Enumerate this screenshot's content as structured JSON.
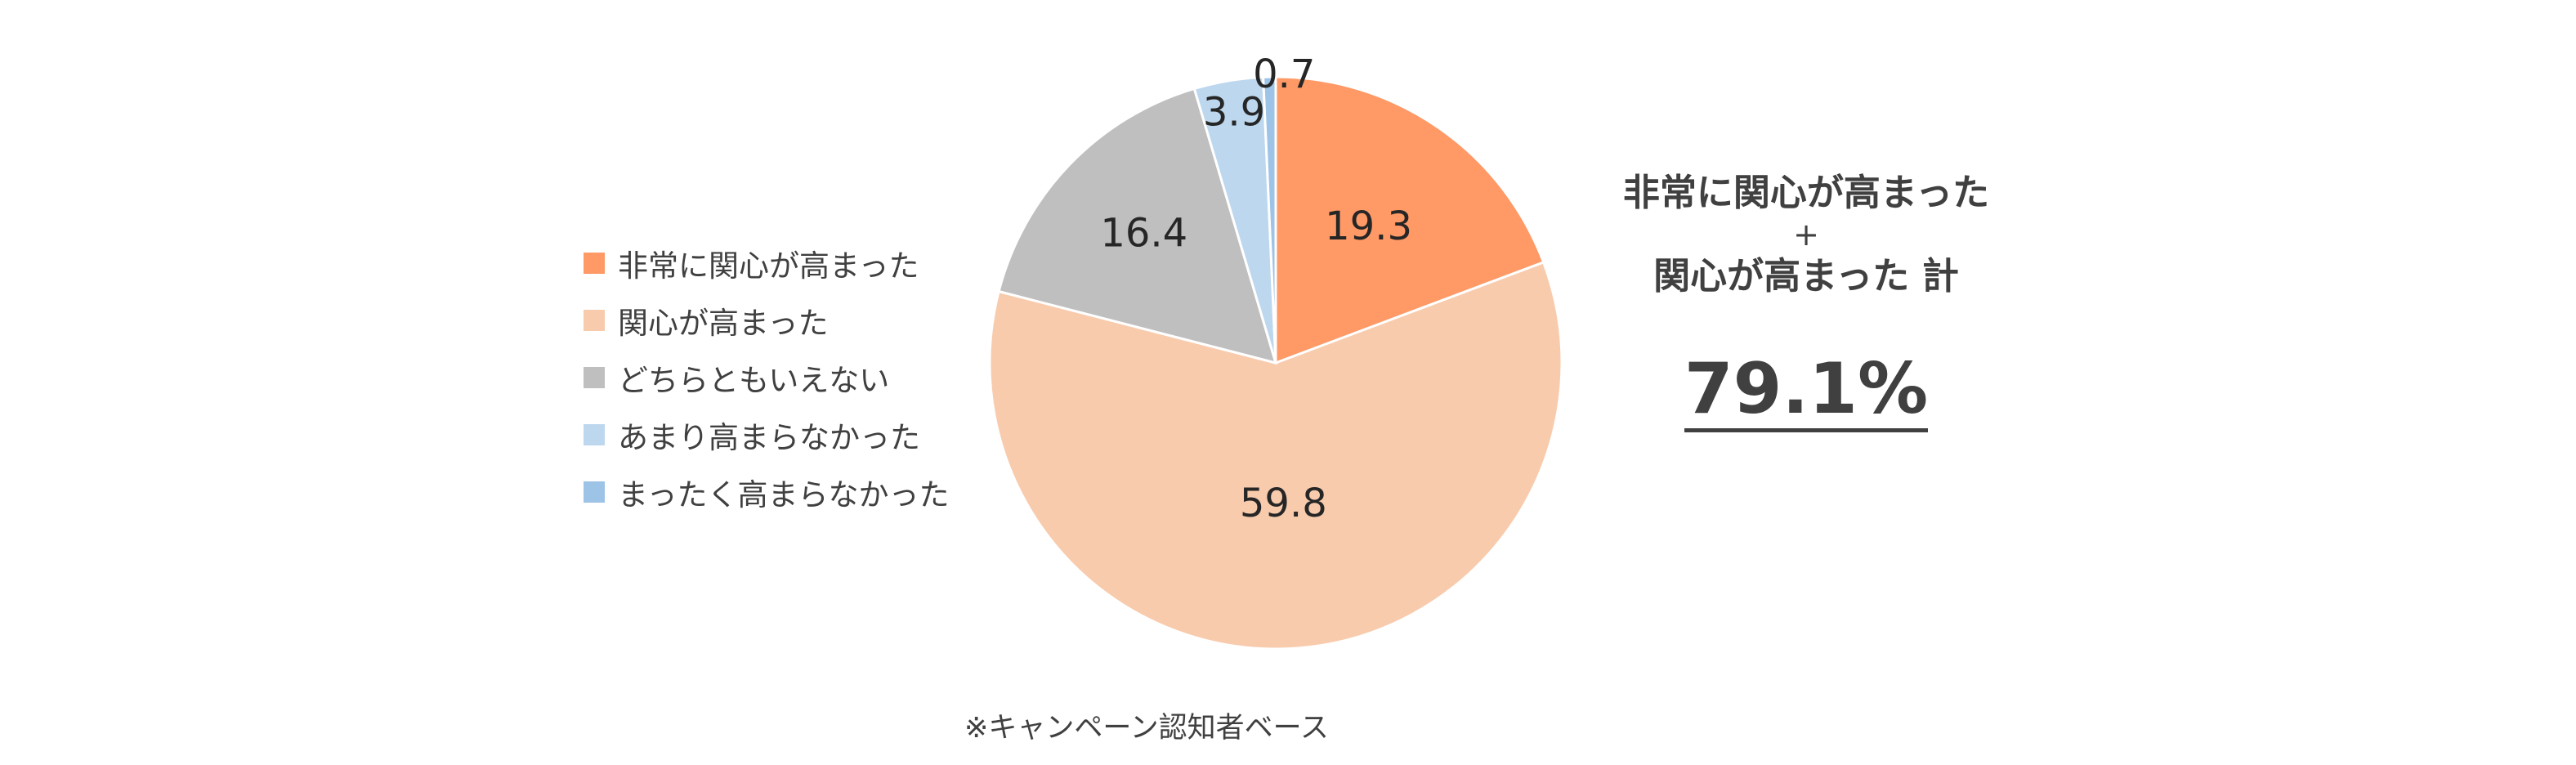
{
  "chart_data": {
    "type": "pie",
    "start": "12 o'clock, clockwise",
    "slices": [
      {
        "label": "非常に関心が高まった",
        "value": 19.3,
        "value_label": "19.3",
        "color": "#FF9966"
      },
      {
        "label": "関心が高まった",
        "value": 59.8,
        "value_label": "59.8",
        "color": "#F8CBAD"
      },
      {
        "label": "どちらともいえない",
        "value": 16.4,
        "value_label": "16.4",
        "color": "#BFBFBF"
      },
      {
        "label": "あまり高まらなかった",
        "value": 3.9,
        "value_label": "3.9",
        "color": "#BDD7EE"
      },
      {
        "label": "まったく高まらなかった",
        "value": 0.7,
        "value_label": "0.7",
        "color": "#9DC3E6"
      }
    ],
    "legend_position": "left"
  },
  "legend": {
    "items": [
      {
        "label": "非常に関心が高まった",
        "color": "#FF9966"
      },
      {
        "label": "関心が高まった",
        "color": "#F8CBAD"
      },
      {
        "label": "どちらともいえない",
        "color": "#BFBFBF"
      },
      {
        "label": "あまり高まらなかった",
        "color": "#BDD7EE"
      },
      {
        "label": "まったく高まらなかった",
        "color": "#9DC3E6"
      }
    ]
  },
  "summary": {
    "line1": "非常に関心が高まった",
    "plus": "+",
    "line2": "関心が高まった 計",
    "total": "79.1%"
  },
  "footnote": "※キャンペーン認知者ベース"
}
